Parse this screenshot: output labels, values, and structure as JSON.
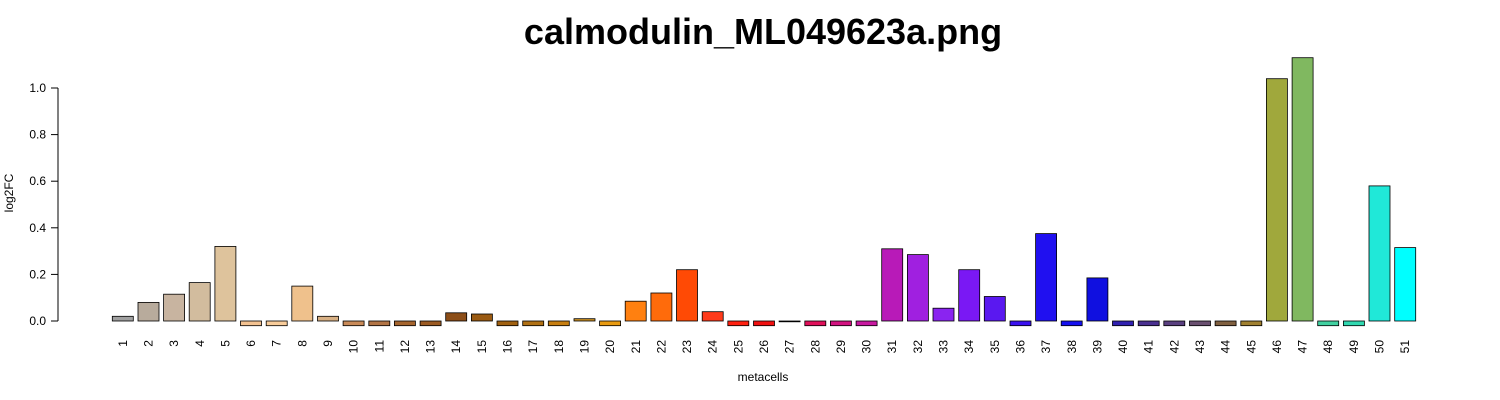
{
  "chart_data": {
    "type": "bar",
    "title": "calmodulin_ML049623a.png",
    "xlabel": "metacells",
    "ylabel": "log2FC",
    "ylim": [
      -0.025,
      1.13
    ],
    "yticks": [
      "0.0",
      "0.2",
      "0.4",
      "0.6",
      "0.8",
      "1.0"
    ],
    "ytick_values": [
      0.0,
      0.2,
      0.4,
      0.6,
      0.8,
      1.0
    ],
    "grid": false,
    "legend": "none",
    "categories": [
      "1",
      "2",
      "3",
      "4",
      "5",
      "6",
      "7",
      "8",
      "9",
      "10",
      "11",
      "12",
      "13",
      "14",
      "15",
      "16",
      "17",
      "18",
      "19",
      "20",
      "21",
      "22",
      "23",
      "24",
      "25",
      "26",
      "27",
      "28",
      "29",
      "30",
      "31",
      "32",
      "33",
      "34",
      "35",
      "36",
      "37",
      "38",
      "39",
      "40",
      "41",
      "42",
      "43",
      "44",
      "45",
      "46",
      "47",
      "48",
      "49",
      "50",
      "51"
    ],
    "values": [
      0.02,
      0.08,
      0.115,
      0.165,
      0.32,
      -0.02,
      -0.02,
      0.15,
      0.02,
      -0.02,
      -0.02,
      -0.02,
      -0.02,
      0.035,
      0.03,
      -0.02,
      -0.02,
      -0.02,
      0.01,
      -0.02,
      0.085,
      0.12,
      0.22,
      0.04,
      -0.02,
      -0.02,
      -0.002,
      -0.02,
      -0.02,
      -0.02,
      0.31,
      0.285,
      0.055,
      0.22,
      0.105,
      -0.02,
      0.375,
      -0.02,
      0.185,
      -0.02,
      -0.02,
      -0.02,
      -0.02,
      -0.02,
      -0.02,
      1.04,
      1.13,
      -0.02,
      -0.02,
      0.58,
      0.315
    ],
    "colors": [
      "#a0a0a0",
      "#b8ab9c",
      "#c8b4a0",
      "#d2bc9e",
      "#deC39c",
      "#f3c291",
      "#f8cc9a",
      "#efc18c",
      "#d8b084",
      "#c98a58",
      "#b27445",
      "#a5642d",
      "#9b5a22",
      "#8c4e18",
      "#9a5a12",
      "#a06010",
      "#b07014",
      "#c77e10",
      "#cc9022",
      "#e89a10",
      "#ff8010",
      "#ff6b0b",
      "#ff4a05",
      "#ff3b1b",
      "#ff2010",
      "#f01010",
      "#e01818",
      "#e0105a",
      "#d21280",
      "#c818a0",
      "#b81ab8",
      "#a020e0",
      "#8a24f0",
      "#7a18f4",
      "#5a18f0",
      "#3a10f0",
      "#2010f0",
      "#1510f0",
      "#1010e0",
      "#3020b0",
      "#4a3090",
      "#5a4080",
      "#6a5070",
      "#806040",
      "#a08030",
      "#a0a83c",
      "#80b860",
      "#40d0a0",
      "#30d8b0",
      "#20e8d8",
      "#00ffff"
    ]
  }
}
